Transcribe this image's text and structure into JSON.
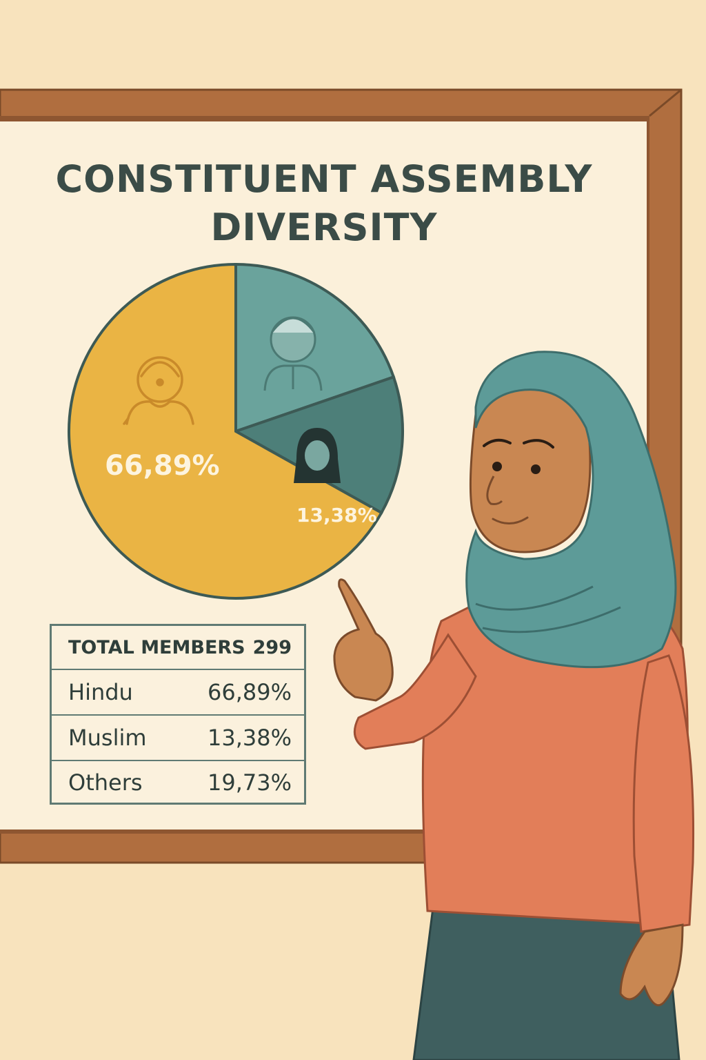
{
  "chart_data": {
    "type": "pie",
    "title": "CONSTITUENT ASSEMBLY DIVERSITY",
    "title_lines": [
      "CONSTITUENT ASSEMBLY",
      "DIVERSITY"
    ],
    "total_label": "TOTAL MEMBERS",
    "total_value": "299",
    "slices": [
      {
        "name": "Hindu",
        "value": 66.89,
        "label": "66,89%",
        "color": "#eab444"
      },
      {
        "name": "Others",
        "value": 19.73,
        "label": "19,73%",
        "color": "#6aa39c"
      },
      {
        "name": "Muslim",
        "value": 13.38,
        "label": "13,38%",
        "color": "#4d7f79"
      }
    ],
    "pie_labels": {
      "hindu": "66,89%",
      "muslim": "13,38%"
    },
    "legend": [
      {
        "name": "Hindu",
        "value": "66,89%"
      },
      {
        "name": "Muslim",
        "value": "13,38%"
      },
      {
        "name": "Others",
        "value": "19,73%"
      }
    ]
  },
  "colors": {
    "background": "#f8e3bd",
    "board": "#fbf0da",
    "frame": "#b06e3f",
    "hindu": "#eab444",
    "others": "#6aa39c",
    "muslim": "#4d7f79",
    "text": "#3b4c47"
  },
  "icons": [
    "hindu-person-icon",
    "others-person-icon",
    "muslim-woman-icon",
    "presenter-figure"
  ]
}
